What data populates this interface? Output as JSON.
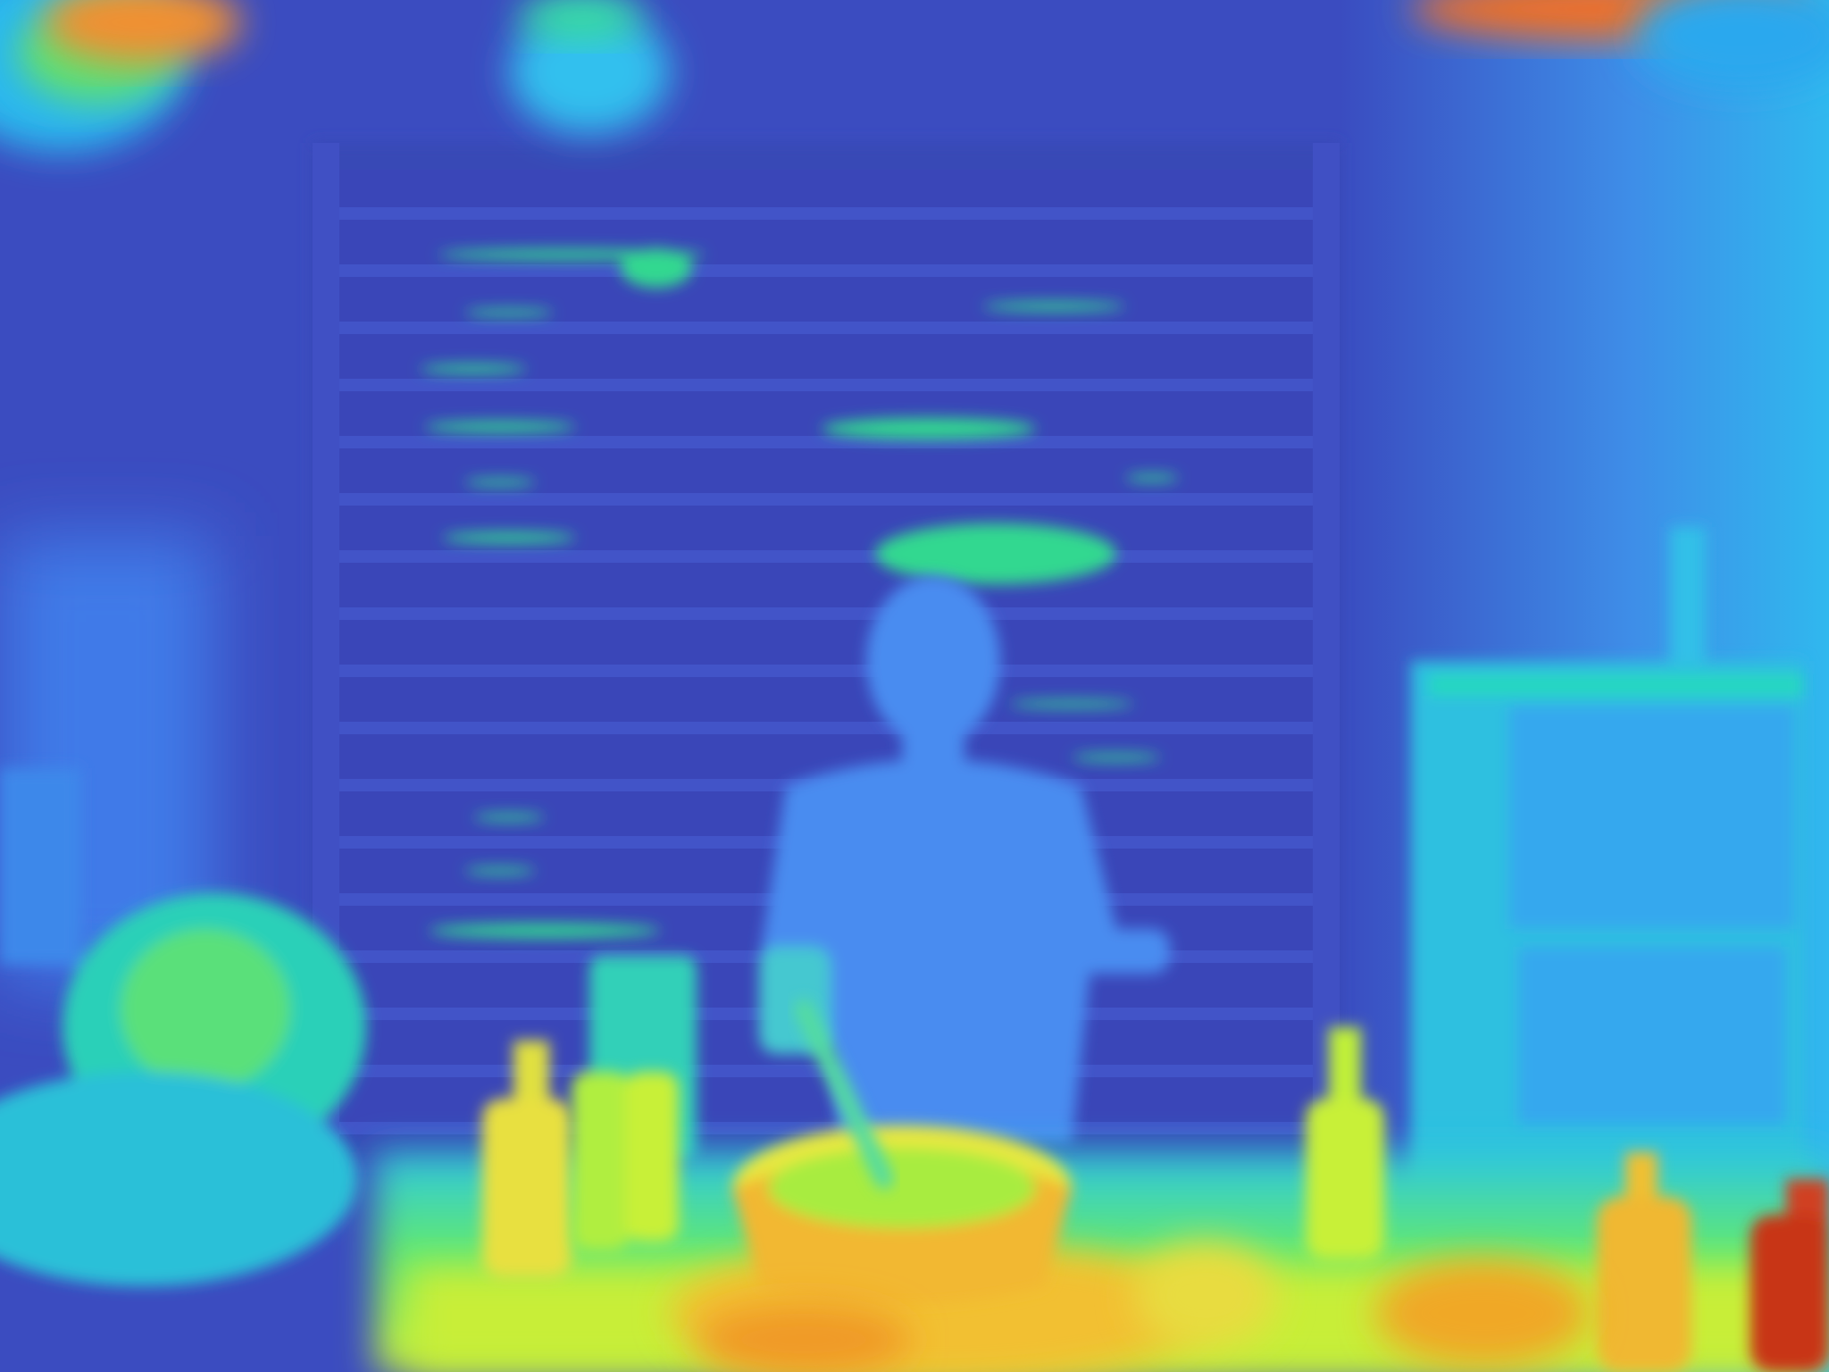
{
  "image": {
    "kind": "depth-map",
    "colormap": "turbo",
    "palette": {
      "far": "#3b4cc0",
      "mid_far": "#4a78e8",
      "mid": "#2fb8f0",
      "mid_near": "#25d8b0",
      "near": "#a6f03a",
      "nearer": "#f2e030",
      "closest": "#f58a20",
      "extreme": "#c0301a"
    }
  },
  "scene_elements": [
    {
      "name": "back-wall-shelving",
      "depth_color": "#3f50c6"
    },
    {
      "name": "chef-figure",
      "depth_color": "#4a8cf0"
    },
    {
      "name": "cooking-pot",
      "depth_color": "#f2b830"
    },
    {
      "name": "bottle-left",
      "depth_color": "#e8e040"
    },
    {
      "name": "bottle-center",
      "depth_color": "#c8f038"
    },
    {
      "name": "bottle-right",
      "depth_color": "#f0c030"
    },
    {
      "name": "bottle-far-right",
      "depth_color": "#c83418"
    },
    {
      "name": "side-cabinet-right",
      "depth_color": "#28c8d8"
    },
    {
      "name": "stool-left",
      "depth_color": "#2ad0b8"
    },
    {
      "name": "counter-foreground",
      "depth_color": "#b8f03a"
    },
    {
      "name": "ceiling-lights",
      "depth_color": "#f08030"
    }
  ]
}
